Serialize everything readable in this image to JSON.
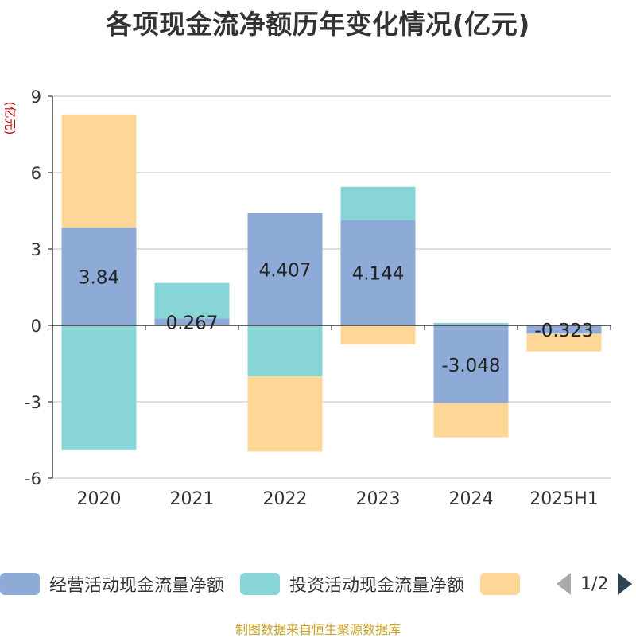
{
  "chart_data": {
    "type": "bar",
    "stacked": true,
    "title": "各项现金流净额历年变化情况(亿元)",
    "ylabel": "(亿元)",
    "categories": [
      "2020",
      "2021",
      "2022",
      "2023",
      "2024",
      "2025H1"
    ],
    "ylim": [
      -6,
      9
    ],
    "yticks": [
      9,
      6,
      3,
      0,
      -3,
      -6
    ],
    "grid": true,
    "legend_position": "bottom",
    "series": [
      {
        "name": "经营活动现金流量净额",
        "color": "#8eabd8",
        "values": [
          3.84,
          0.267,
          4.407,
          4.144,
          -3.048,
          -0.323
        ],
        "labels": [
          "3.84",
          "0.267",
          "4.407",
          "4.144",
          "-3.048",
          "-0.323"
        ]
      },
      {
        "name": "投资活动现金流量净额",
        "color": "#88d5d8",
        "values": [
          -4.9,
          1.4,
          -2.0,
          1.3,
          0.1,
          0.0
        ]
      },
      {
        "name": "",
        "color": "#fed797",
        "values": [
          4.45,
          0.0,
          -2.95,
          -0.75,
          -1.35,
          -0.7
        ]
      }
    ]
  },
  "legend": {
    "page": "1/2"
  },
  "source": "制图数据来自恒生聚源数据库"
}
